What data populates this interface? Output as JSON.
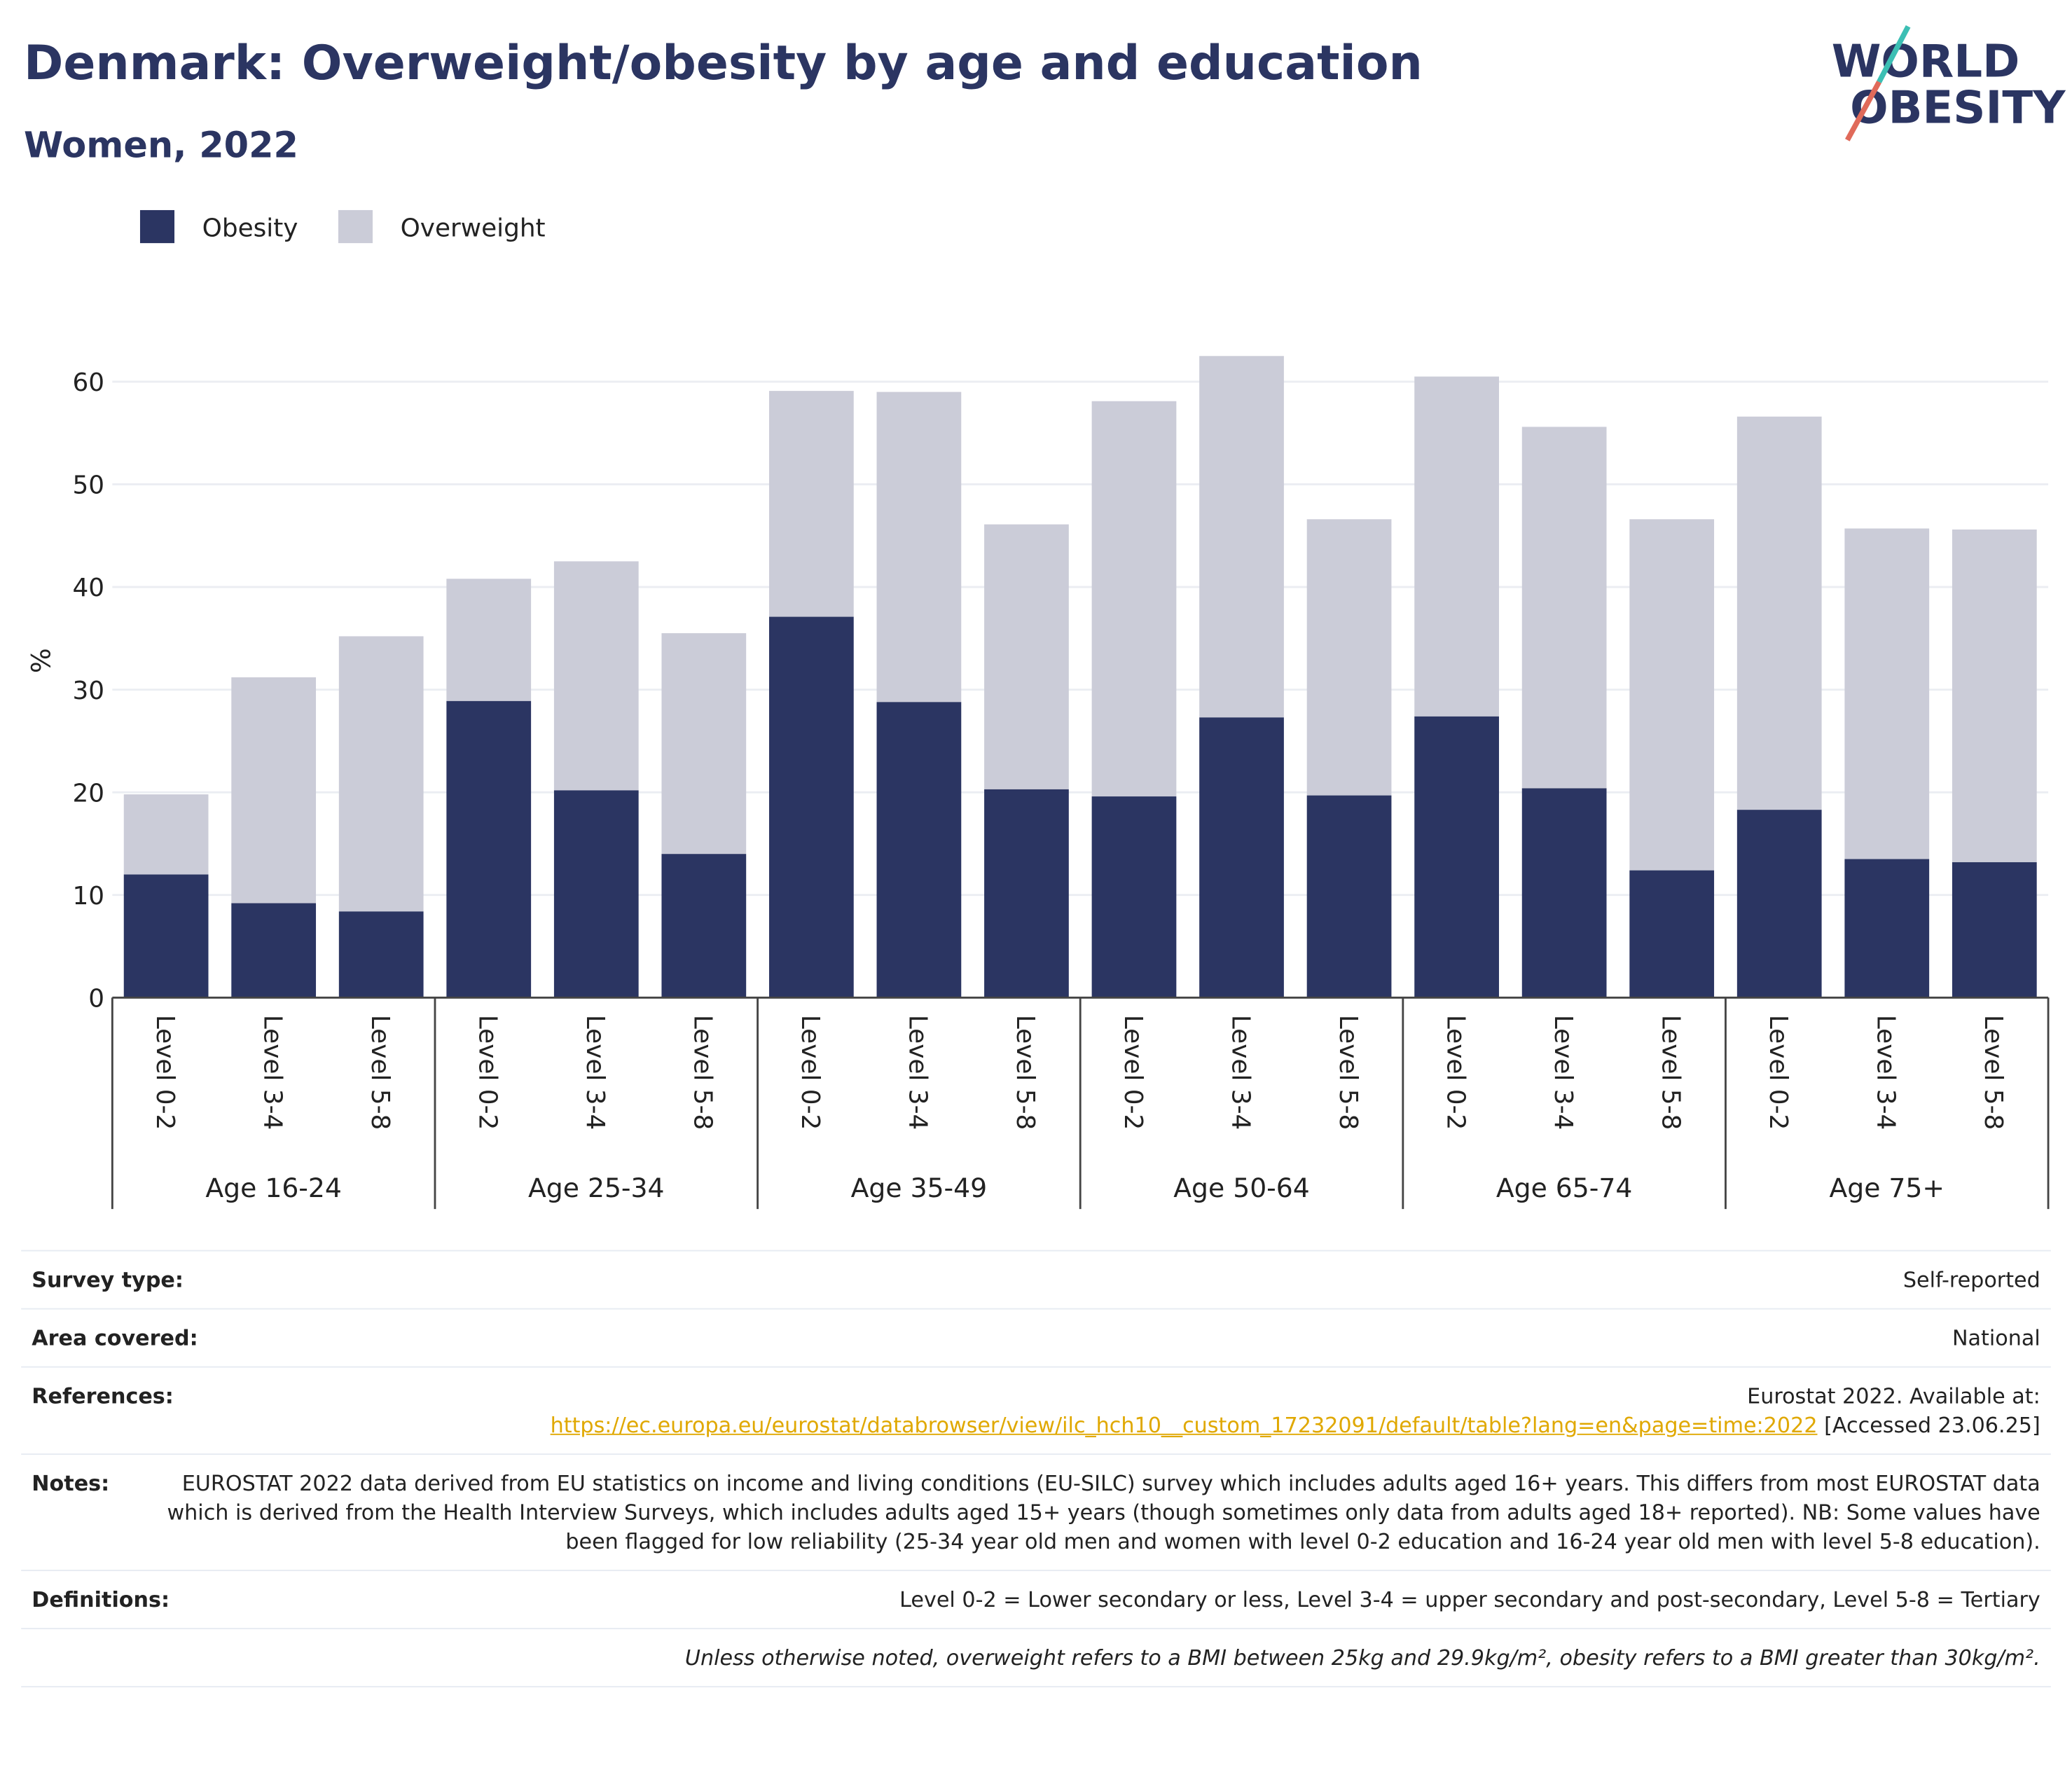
{
  "chart_data": {
    "type": "stacked_bar",
    "title": "Denmark: Overweight/obesity by age and education",
    "subtitle": "Women, 2022",
    "logo": [
      "WORLD",
      "OBESITY"
    ],
    "ylabel": "%",
    "categories": [
      "Level 0-2",
      "Level 3-4",
      "Level 5-8",
      "Level 0-2",
      "Level 3-4",
      "Level 5-8",
      "Level 0-2",
      "Level 3-4",
      "Level 5-8",
      "Level 0-2",
      "Level 3-4",
      "Level 5-8",
      "Level 0-2",
      "Level 3-4",
      "Level 5-8",
      "Level 0-2",
      "Level 3-4",
      "Level 5-8"
    ],
    "groups": [
      "Age 16-24",
      "Age 25-34",
      "Age 35-49",
      "Age 50-64",
      "Age 65-74",
      "Age 75+"
    ],
    "series": [
      {
        "name": "Obesity",
        "color": "#2b3562",
        "values": [
          12.0,
          9.2,
          8.4,
          28.9,
          20.2,
          14.0,
          37.1,
          28.8,
          20.3,
          19.6,
          27.3,
          19.7,
          27.4,
          20.4,
          12.4,
          18.3,
          13.5,
          13.2
        ]
      },
      {
        "name": "Overweight",
        "color": "#cbccd8",
        "values": [
          7.8,
          22.0,
          26.8,
          11.9,
          22.3,
          21.5,
          22.0,
          30.2,
          25.8,
          38.5,
          35.2,
          26.9,
          33.1,
          35.2,
          34.2,
          38.3,
          32.2,
          32.4
        ]
      }
    ],
    "ylim": [
      0,
      65
    ],
    "yticks": [
      0,
      10,
      20,
      30,
      40,
      50,
      60
    ],
    "grid": true
  },
  "table": {
    "rows": [
      {
        "label": "Survey type:",
        "value": [
          "Self-reported"
        ]
      },
      {
        "label": "Area covered:",
        "value": [
          "National"
        ]
      },
      {
        "label": "References:",
        "value": [
          "Eurostat 2022. Available at:",
          "https://ec.europa.eu/eurostat/databrowser/view/ilc_hch10__custom_17232091/default/table?lang=en&page=time:2022",
          "[Accessed 23.06.25]"
        ]
      },
      {
        "label": "Notes:",
        "value": [
          "EUROSTAT 2022 data derived from EU statistics on income and living conditions (EU-SILC) survey which includes adults aged 16+ years. This differs from most EUROSTAT data which is derived from the Health Interview Surveys, which includes adults aged 15+ years (though sometimes only data from adults aged 18+ reported). NB: Some values have been flagged for low reliability (25-34 year old men and women with level 0-2 education and 16-24 year old men with level 5-8 education)."
        ]
      },
      {
        "label": "Definitions:",
        "value": [
          "Level 0-2 = Lower secondary or less, Level 3-4 = upper secondary and post-secondary, Level 5-8 = Tertiary"
        ]
      }
    ],
    "footnote": "Unless otherwise noted, overweight refers to a BMI between 25kg and 29.9kg/m², obesity refers to a BMI greater than 30kg/m²."
  }
}
